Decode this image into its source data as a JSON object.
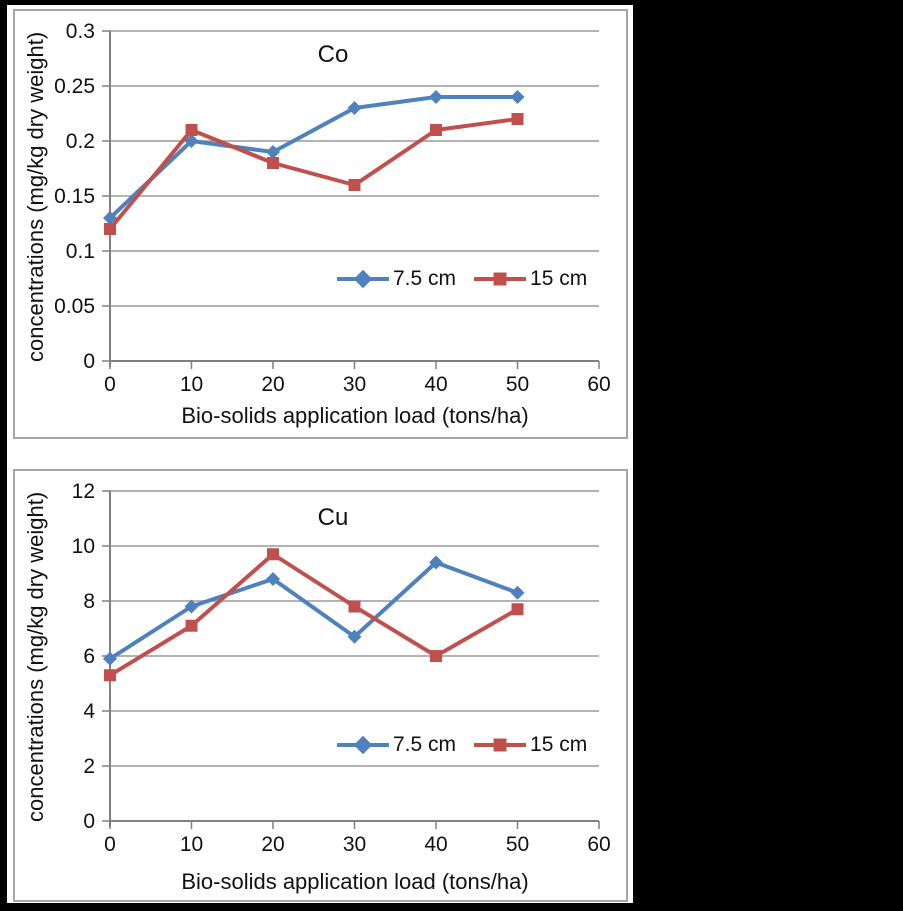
{
  "figure": {
    "background_color": "#000000",
    "panel_background": "#ffffff",
    "panel_border_color": "#a6a6a6",
    "text_color": "#111111",
    "gridline_color": "#9a9a9a",
    "axis_color": "#808080"
  },
  "chart_data": [
    {
      "type": "line",
      "title": "Co",
      "xlabel": "Bio-solids application load (tons/ha)",
      "ylabel": "concentrations (mg/kg dry weight)",
      "x": [
        0,
        10,
        20,
        30,
        40,
        50
      ],
      "xlim": [
        0,
        60
      ],
      "xticks": [
        0,
        10,
        20,
        30,
        40,
        50,
        60
      ],
      "ylim": [
        0,
        0.3
      ],
      "yticks": [
        0,
        0.05,
        0.1,
        0.15,
        0.2,
        0.25,
        0.3
      ],
      "ytick_labels": [
        "0",
        "0.05",
        "0.1",
        "0.15",
        "0.2",
        "0.25",
        "0.3"
      ],
      "grid": true,
      "legend_position": "inside-right",
      "series": [
        {
          "name": "7.5 cm",
          "color": "#4F81BD",
          "marker": "diamond",
          "values": [
            0.13,
            0.2,
            0.19,
            0.23,
            0.24,
            0.24
          ]
        },
        {
          "name": "15 cm",
          "color": "#C0504D",
          "marker": "square",
          "values": [
            0.12,
            0.21,
            0.18,
            0.16,
            0.21,
            0.22
          ]
        }
      ]
    },
    {
      "type": "line",
      "title": "Cu",
      "xlabel": "Bio-solids application load (tons/ha)",
      "ylabel": "concentrations (mg/kg dry weight)",
      "x": [
        0,
        10,
        20,
        30,
        40,
        50
      ],
      "xlim": [
        0,
        60
      ],
      "xticks": [
        0,
        10,
        20,
        30,
        40,
        50,
        60
      ],
      "ylim": [
        0,
        12
      ],
      "yticks": [
        0,
        2,
        4,
        6,
        8,
        10,
        12
      ],
      "ytick_labels": [
        "0",
        "2",
        "4",
        "6",
        "8",
        "10",
        "12"
      ],
      "grid": true,
      "legend_position": "inside-right",
      "series": [
        {
          "name": "7.5 cm",
          "color": "#4F81BD",
          "marker": "diamond",
          "values": [
            5.9,
            7.8,
            8.8,
            6.7,
            9.4,
            8.3
          ]
        },
        {
          "name": "15 cm",
          "color": "#C0504D",
          "marker": "square",
          "values": [
            5.3,
            7.1,
            9.7,
            7.8,
            6.0,
            7.7
          ]
        }
      ]
    }
  ]
}
